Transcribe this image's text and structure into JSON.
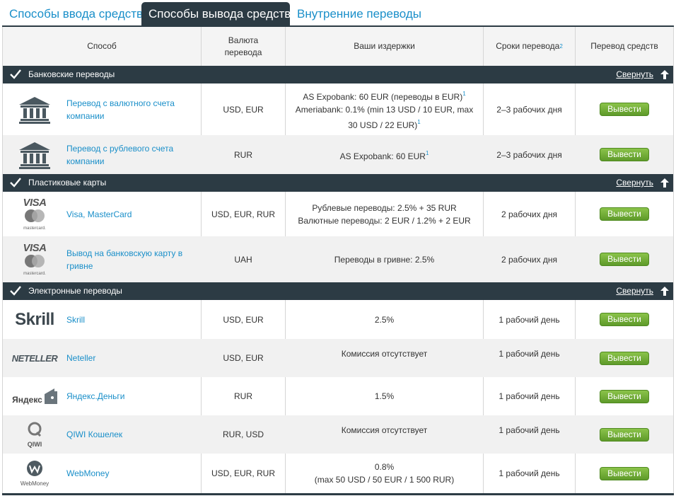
{
  "tabs": [
    {
      "label": "Способы ввода средств"
    },
    {
      "label": "Способы вывода средств"
    },
    {
      "label": "Внутренние переводы"
    }
  ],
  "header": {
    "method": "Способ",
    "currency": "Валюта перевода",
    "costs": "Ваши издержки",
    "terms": "Сроки перевода",
    "terms_sup": "2",
    "transfer": "Перевод средств"
  },
  "collapse_label": "Свернуть",
  "withdraw_label": "Вывести",
  "sections": [
    {
      "title": "Банковские переводы"
    },
    {
      "title": "Пластиковые карты"
    },
    {
      "title": "Электронные переводы"
    }
  ],
  "rows": [
    {
      "name": "Перевод с валютного счета компании",
      "currency": "USD, EUR",
      "cost1": "AS Expobank: 60 EUR (переводы в EUR)",
      "cost1_sup": "1",
      "cost2": "Ameriabank: 0.1% (min 13 USD / 10 EUR, max 30 USD / 22 EUR)",
      "cost2_sup": "1",
      "term": "2–3 рабочих дня",
      "logo": "bank-icon"
    },
    {
      "name": "Перевод с рублевого счета компании",
      "currency": "RUR",
      "cost1": "AS Expobank: 60 EUR",
      "cost1_sup": "1",
      "term": "2–3 рабочих дня",
      "logo": "bank-icon"
    },
    {
      "name": "Visa, MasterCard",
      "currency": "USD, EUR, RUR",
      "cost1": "Рублевые переводы: 2.5% + 35 RUR",
      "cost2": "Валютные переводы: 2 EUR / 1.2% + 2 EUR",
      "term": "2 рабочих дня",
      "logo": "visa-mastercard-logo",
      "logo_text1": "VISA",
      "logo_text2": "mastercard."
    },
    {
      "name": "Вывод на банковскую карту в гривне",
      "currency": "UAH",
      "cost1": "Переводы в гривне: 2.5%",
      "term": "2 рабочих дня",
      "logo": "visa-mastercard-logo",
      "logo_text1": "VISA",
      "logo_text2": "mastercard."
    },
    {
      "name": "Skrill",
      "currency": "USD, EUR",
      "cost1": "2.5%",
      "term": "1 рабочий день",
      "logo": "skrill-logo",
      "logo_text1": "Skrill"
    },
    {
      "name": "Neteller",
      "currency": "USD, EUR",
      "cost1": "Комиссия отсутствует",
      "term": "1 рабочий день",
      "logo": "neteller-logo",
      "logo_text1": "NETELLER"
    },
    {
      "name": "Яндекс.Деньги",
      "currency": "RUR",
      "cost1": "1.5%",
      "term": "1 рабочий день",
      "logo": "yandex-money-logo",
      "logo_text1": "Яндекс"
    },
    {
      "name": "QIWI Кошелек",
      "currency": "RUR, USD",
      "cost1": "Комиссия отсутствует",
      "term": "1 рабочий день",
      "logo": "qiwi-logo",
      "logo_text1": "QIWI"
    },
    {
      "name": "WebMoney",
      "currency": "USD, EUR, RUR",
      "cost1": "0.8%",
      "cost2": "(max 50 USD / 50 EUR / 1 500 RUR)",
      "term": "1 рабочий день",
      "logo": "webmoney-logo",
      "logo_text1": "WebMoney"
    }
  ],
  "colors": {
    "accent": "#1a8fc9",
    "dark": "#2c3b44",
    "button": "#6aa832"
  }
}
